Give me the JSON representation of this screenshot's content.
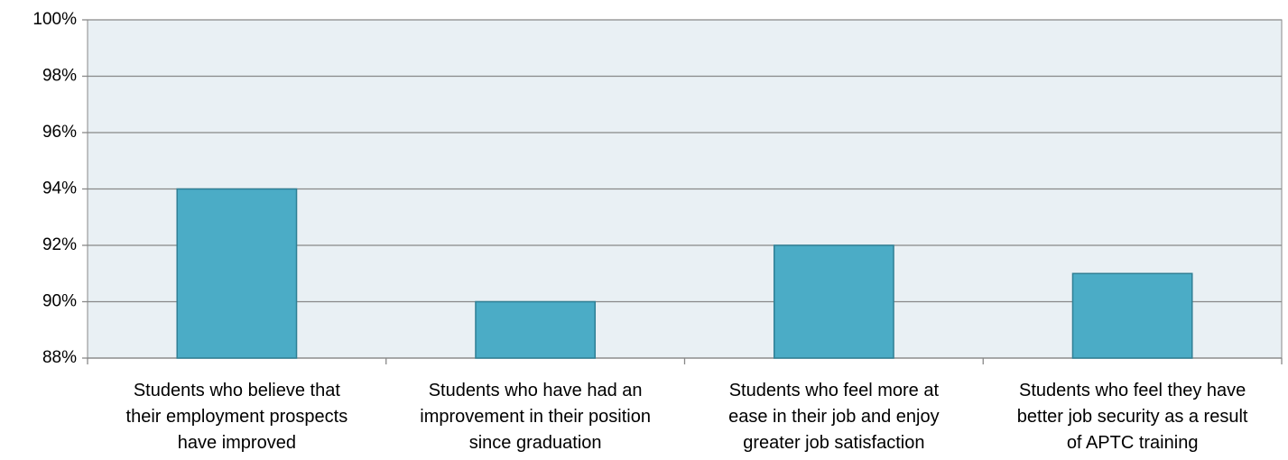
{
  "chart_data": {
    "type": "bar",
    "categories": [
      "Students who believe that\ntheir employment prospects\nhave improved",
      "Students who have had an\nimprovement in their position\nsince graduation",
      "Students who feel more at\nease in their job and enjoy\ngreater job satisfaction",
      "Students who feel they have\nbetter job security as a result\nof APTC training"
    ],
    "values": [
      94,
      90,
      92,
      91
    ],
    "color": "#4bacc6",
    "ylim": [
      88,
      100
    ],
    "yticks": [
      {
        "value": 88,
        "label": "88%"
      },
      {
        "value": 90,
        "label": "90%"
      },
      {
        "value": 92,
        "label": "92%"
      },
      {
        "value": 94,
        "label": "94%"
      },
      {
        "value": 96,
        "label": "96%"
      },
      {
        "value": 98,
        "label": "98%"
      },
      {
        "value": 100,
        "label": "100%"
      }
    ],
    "grid": true
  }
}
